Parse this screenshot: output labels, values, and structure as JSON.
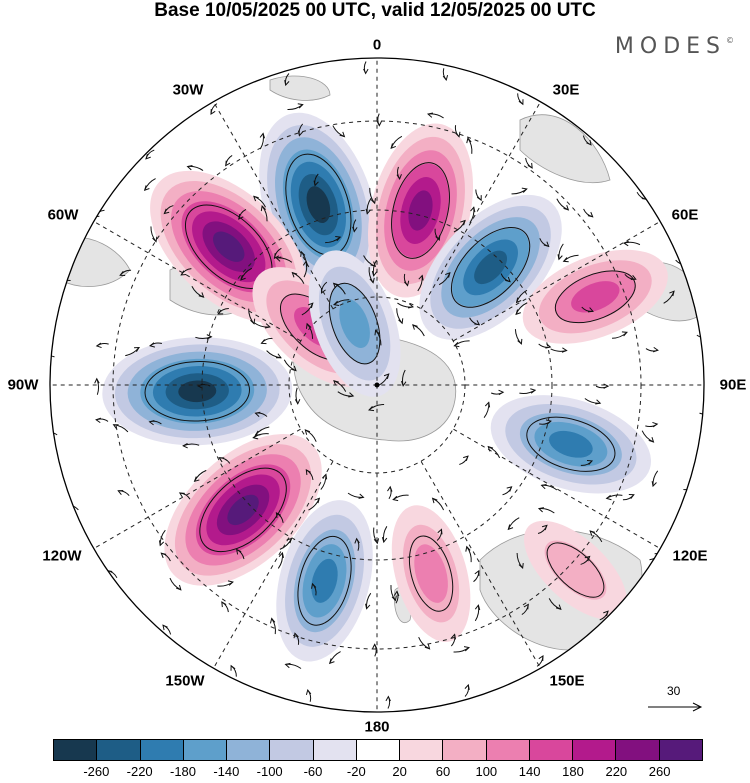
{
  "title": "Base 10/05/2025 00 UTC, valid 12/05/2025 00 UTC",
  "brand": "MODES",
  "brand_mark": "©",
  "longitude_labels": {
    "lon_0": "0",
    "lon_30e": "30E",
    "lon_60e": "60E",
    "lon_90e": "90E",
    "lon_120e": "120E",
    "lon_150e": "150E",
    "lon_180": "180",
    "lon_150w": "150W",
    "lon_120w": "120W",
    "lon_90w": "90W",
    "lon_60w": "60W",
    "lon_30w": "30W"
  },
  "vector_reference": "30",
  "colorbar": {
    "ticks": [
      "-260",
      "-220",
      "-180",
      "-140",
      "-100",
      "-60",
      "-20",
      "20",
      "60",
      "100",
      "140",
      "180",
      "220",
      "260"
    ],
    "colors": [
      "#17384f",
      "#1e5d86",
      "#2f7cb0",
      "#5e9fcb",
      "#8fb3d8",
      "#c2c9e3",
      "#e3e2f0",
      "#ffffff",
      "#f8d7df",
      "#f3afc4",
      "#ec7fb0",
      "#d9479c",
      "#b31a8c",
      "#82107f",
      "#561a7a"
    ]
  },
  "anomaly_centers": [
    {
      "sign": "negative",
      "level": -260,
      "lon": -18,
      "colat": 0.58
    },
    {
      "sign": "positive",
      "level": 220,
      "lon": 14,
      "colat": 0.55
    },
    {
      "sign": "negative",
      "level": -220,
      "lon": 44,
      "colat": 0.5
    },
    {
      "sign": "positive",
      "level": 140,
      "lon": 68,
      "colat": 0.72
    },
    {
      "sign": "positive",
      "level": 260,
      "lon": -47,
      "colat": 0.62
    },
    {
      "sign": "positive",
      "level": 140,
      "lon": -47,
      "colat": 0.26
    },
    {
      "sign": "negative",
      "level": -140,
      "lon": -20,
      "colat": 0.2
    },
    {
      "sign": "negative",
      "level": -260,
      "lon": -92,
      "colat": 0.55
    },
    {
      "sign": "positive",
      "level": 260,
      "lon": -133,
      "colat": 0.56
    },
    {
      "sign": "negative",
      "level": -180,
      "lon": -165,
      "colat": 0.62
    },
    {
      "sign": "positive",
      "level": 100,
      "lon": 164,
      "colat": 0.6
    },
    {
      "sign": "positive",
      "level": 60,
      "lon": 133,
      "colat": 0.83
    },
    {
      "sign": "negative",
      "level": -180,
      "lon": 107,
      "colat": 0.62
    }
  ]
}
